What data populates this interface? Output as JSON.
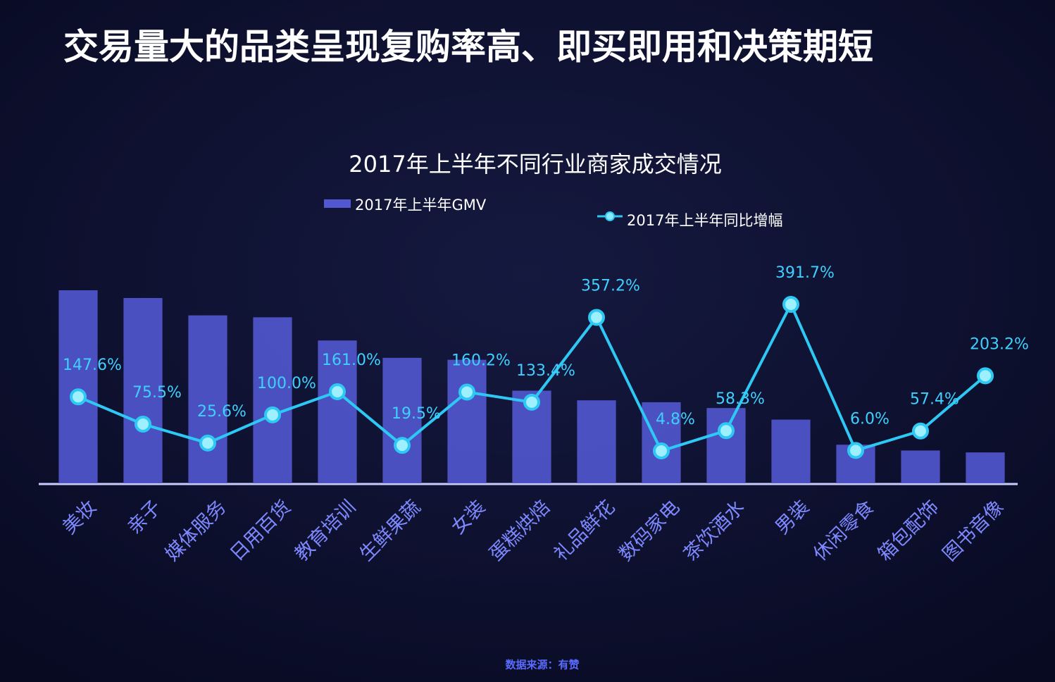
{
  "chart_data": {
    "type": "bar-line",
    "title": "交易量大的品类呈现复购率高、即买即用和决策期短",
    "subtitle": "2017年上半年不同行业商家成交情况",
    "source": "数据来源：有赞",
    "categories": [
      "美妆",
      "亲子",
      "媒体服务",
      "日用百货",
      "教育培训",
      "生鲜果蔬",
      "女装",
      "蛋糕烘焙",
      "礼品鲜花",
      "数码家电",
      "茶饮酒水",
      "男装",
      "休闲零食",
      "箱包配饰",
      "图书音像"
    ],
    "series": [
      {
        "name": "2017年上半年GMV",
        "color": "#5258d0",
        "values": [
          100,
          96,
          87,
          86,
          74,
          65,
          64,
          48,
          43,
          42,
          39,
          33,
          20,
          17,
          16
        ]
      },
      {
        "name": "2017年上半年同比增幅",
        "color": "#2ec8f5",
        "axis": "y2",
        "values": [
          147.6,
          75.5,
          25.6,
          100.0,
          161.0,
          19.5,
          160.2,
          133.4,
          357.2,
          4.8,
          58.3,
          391.7,
          6.0,
          57.4,
          203.2
        ],
        "value_labels": [
          "147.6%",
          "75.5%",
          "25.6%",
          "100.0%",
          "161.0%",
          "19.5%",
          "160.2%",
          "133.4%",
          "357.2%",
          "4.8%",
          "58.3%",
          "391.7%",
          "6.0%",
          "57.4%",
          "203.2%"
        ]
      }
    ]
  }
}
